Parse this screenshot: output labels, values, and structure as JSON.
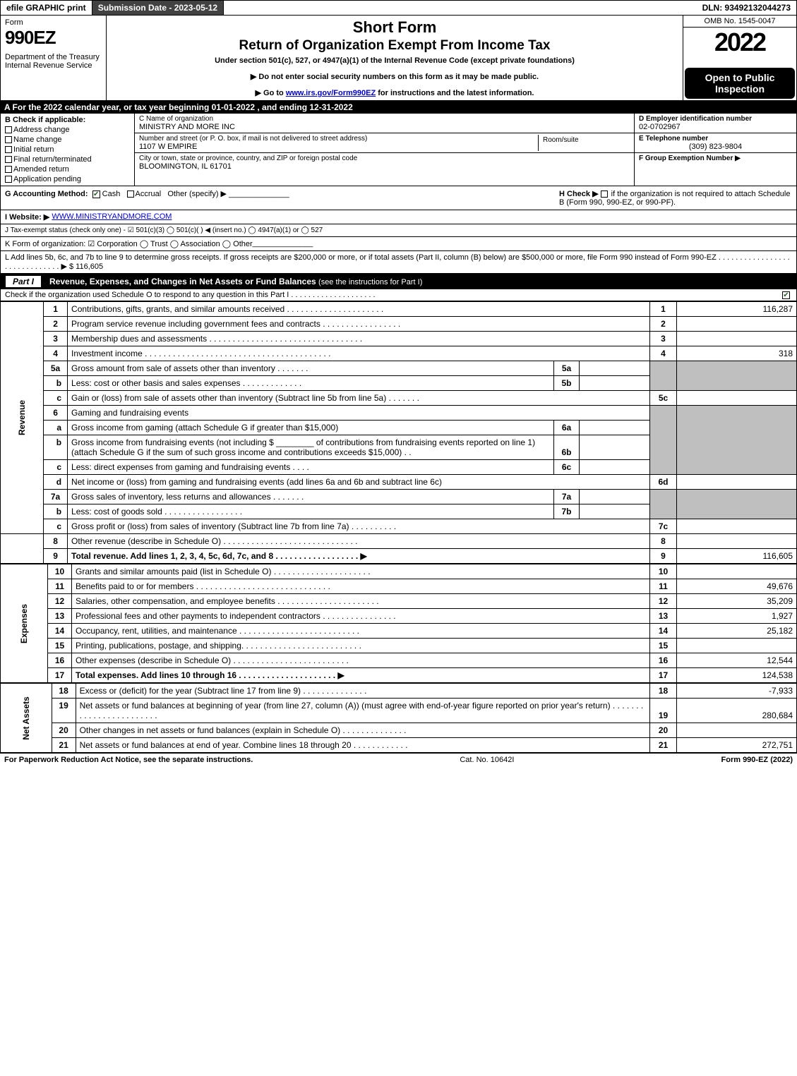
{
  "topbar": {
    "efile": "efile GRAPHIC print",
    "submission": "Submission Date - 2023-05-12",
    "dln": "DLN: 93492132044273"
  },
  "header": {
    "form_word": "Form",
    "form_num": "990EZ",
    "dept": "Department of the Treasury\nInternal Revenue Service",
    "title1": "Short Form",
    "title2": "Return of Organization Exempt From Income Tax",
    "sub": "Under section 501(c), 527, or 4947(a)(1) of the Internal Revenue Code (except private foundations)",
    "note1": "▶ Do not enter social security numbers on this form as it may be made public.",
    "note2_pre": "▶ Go to ",
    "note2_link": "www.irs.gov/Form990EZ",
    "note2_post": " for instructions and the latest information.",
    "omb": "OMB No. 1545-0047",
    "year": "2022",
    "inspect": "Open to Public Inspection"
  },
  "rowA": "A  For the 2022 calendar year, or tax year beginning 01-01-2022 , and ending 12-31-2022",
  "colB": {
    "label": "B  Check if applicable:",
    "items": [
      "Address change",
      "Name change",
      "Initial return",
      "Final return/terminated",
      "Amended return",
      "Application pending"
    ]
  },
  "colC": {
    "name_lab": "C Name of organization",
    "name_val": "MINISTRY AND MORE INC",
    "street_lab": "Number and street (or P. O. box, if mail is not delivered to street address)",
    "street_val": "1107 W EMPIRE",
    "room_lab": "Room/suite",
    "city_lab": "City or town, state or province, country, and ZIP or foreign postal code",
    "city_val": "BLOOMINGTON, IL  61701"
  },
  "colDE": {
    "d_lab": "D Employer identification number",
    "d_val": "02-0702967",
    "e_lab": "E Telephone number",
    "e_val": "(309) 823-9804",
    "f_lab": "F Group Exemption Number   ▶"
  },
  "rowG": {
    "label": "G Accounting Method:",
    "cash": "Cash",
    "accrual": "Accrual",
    "other": "Other (specify) ▶",
    "h_label": "H  Check ▶",
    "h_text": "if the organization is not required to attach Schedule B (Form 990, 990-EZ, or 990-PF)."
  },
  "rowI": {
    "label": "I Website: ▶",
    "value": "WWW.MINISTRYANDMORE.COM"
  },
  "rowJ": "J Tax-exempt status (check only one) -  ☑ 501(c)(3)  ◯ 501(c)(  ) ◀ (insert no.)  ◯ 4947(a)(1) or  ◯ 527",
  "rowK": "K Form of organization:   ☑ Corporation   ◯ Trust   ◯ Association   ◯ Other",
  "rowL": {
    "text": "L Add lines 5b, 6c, and 7b to line 9 to determine gross receipts. If gross receipts are $200,000 or more, or if total assets (Part II, column (B) below) are $500,000 or more, file Form 990 instead of Form 990-EZ . . . . . . . . . . . . . . . . . . . . . . . . . . . . . . ▶ $",
    "value": "116,605"
  },
  "part1": {
    "num": "Part I",
    "title": "Revenue, Expenses, and Changes in Net Assets or Fund Balances",
    "title_note": "(see the instructions for Part I)",
    "sub": "Check if the organization used Schedule O to respond to any question in this Part I . . . . . . . . . . . . . . . . . . . ."
  },
  "side_labels": {
    "revenue": "Revenue",
    "expenses": "Expenses",
    "netassets": "Net Assets"
  },
  "lines": {
    "l1": {
      "n": "1",
      "d": "Contributions, gifts, grants, and similar amounts received . . . . . . . . . . . . . . . . . . . . .",
      "num": "1",
      "amt": "116,287"
    },
    "l2": {
      "n": "2",
      "d": "Program service revenue including government fees and contracts . . . . . . . . . . . . . . . . .",
      "num": "2",
      "amt": ""
    },
    "l3": {
      "n": "3",
      "d": "Membership dues and assessments . . . . . . . . . . . . . . . . . . . . . . . . . . . . . . . . .",
      "num": "3",
      "amt": ""
    },
    "l4": {
      "n": "4",
      "d": "Investment income . . . . . . . . . . . . . . . . . . . . . . . . . . . . . . . . . . . . . . . .",
      "num": "4",
      "amt": "318"
    },
    "l5a": {
      "n": "5a",
      "d": "Gross amount from sale of assets other than inventory . . . . . . .",
      "mini": "5a"
    },
    "l5b": {
      "n": "b",
      "d": "Less: cost or other basis and sales expenses . . . . . . . . . . . . .",
      "mini": "5b"
    },
    "l5c": {
      "n": "c",
      "d": "Gain or (loss) from sale of assets other than inventory (Subtract line 5b from line 5a) . . . . . . .",
      "num": "5c",
      "amt": ""
    },
    "l6": {
      "n": "6",
      "d": "Gaming and fundraising events"
    },
    "l6a": {
      "n": "a",
      "d": "Gross income from gaming (attach Schedule G if greater than $15,000)",
      "mini": "6a"
    },
    "l6b": {
      "n": "b",
      "d1": "Gross income from fundraising events (not including $",
      "d2": "of contributions from fundraising events reported on line 1) (attach Schedule G if the sum of such gross income and contributions exceeds $15,000)   .   .",
      "mini": "6b"
    },
    "l6c": {
      "n": "c",
      "d": "Less: direct expenses from gaming and fundraising events   . . . .",
      "mini": "6c"
    },
    "l6d": {
      "n": "d",
      "d": "Net income or (loss) from gaming and fundraising events (add lines 6a and 6b and subtract line 6c)",
      "num": "6d",
      "amt": ""
    },
    "l7a": {
      "n": "7a",
      "d": "Gross sales of inventory, less returns and allowances . . . . . . .",
      "mini": "7a"
    },
    "l7b": {
      "n": "b",
      "d": "Less: cost of goods sold      . . . . . . . . . . . . . . . . .",
      "mini": "7b"
    },
    "l7c": {
      "n": "c",
      "d": "Gross profit or (loss) from sales of inventory (Subtract line 7b from line 7a) . . . . . . . . . .",
      "num": "7c",
      "amt": ""
    },
    "l8": {
      "n": "8",
      "d": "Other revenue (describe in Schedule O) . . . . . . . . . . . . . . . . . . . . . . . . . . . . .",
      "num": "8",
      "amt": ""
    },
    "l9": {
      "n": "9",
      "d": "Total revenue. Add lines 1, 2, 3, 4, 5c, 6d, 7c, and 8  . . . . . . . . . . . . . . . . . .  ▶",
      "num": "9",
      "amt": "116,605",
      "bold": true
    },
    "l10": {
      "n": "10",
      "d": "Grants and similar amounts paid (list in Schedule O) . . . . . . . . . . . . . . . . . . . . .",
      "num": "10",
      "amt": ""
    },
    "l11": {
      "n": "11",
      "d": "Benefits paid to or for members     . . . . . . . . . . . . . . . . . . . . . . . . . . . . .",
      "num": "11",
      "amt": "49,676"
    },
    "l12": {
      "n": "12",
      "d": "Salaries, other compensation, and employee benefits . . . . . . . . . . . . . . . . . . . . . .",
      "num": "12",
      "amt": "35,209"
    },
    "l13": {
      "n": "13",
      "d": "Professional fees and other payments to independent contractors . . . . . . . . . . . . . . . .",
      "num": "13",
      "amt": "1,927"
    },
    "l14": {
      "n": "14",
      "d": "Occupancy, rent, utilities, and maintenance . . . . . . . . . . . . . . . . . . . . . . . . . .",
      "num": "14",
      "amt": "25,182"
    },
    "l15": {
      "n": "15",
      "d": "Printing, publications, postage, and shipping. . . . . . . . . . . . . . . . . . . . . . . . . .",
      "num": "15",
      "amt": ""
    },
    "l16": {
      "n": "16",
      "d": "Other expenses (describe in Schedule O)     . . . . . . . . . . . . . . . . . . . . . . . . .",
      "num": "16",
      "amt": "12,544"
    },
    "l17": {
      "n": "17",
      "d": "Total expenses. Add lines 10 through 16     . . . . . . . . . . . . . . . . . . . . .  ▶",
      "num": "17",
      "amt": "124,538",
      "bold": true
    },
    "l18": {
      "n": "18",
      "d": "Excess or (deficit) for the year (Subtract line 17 from line 9)       . . . . . . . . . . . . . .",
      "num": "18",
      "amt": "-7,933"
    },
    "l19": {
      "n": "19",
      "d": "Net assets or fund balances at beginning of year (from line 27, column (A)) (must agree with end-of-year figure reported on prior year's return) . . . . . . . . . . . . . . . . . . . . . . . .",
      "num": "19",
      "amt": "280,684"
    },
    "l20": {
      "n": "20",
      "d": "Other changes in net assets or fund balances (explain in Schedule O) . . . . . . . . . . . . . .",
      "num": "20",
      "amt": ""
    },
    "l21": {
      "n": "21",
      "d": "Net assets or fund balances at end of year. Combine lines 18 through 20 . . . . . . . . . . . .",
      "num": "21",
      "amt": "272,751"
    }
  },
  "footer": {
    "left": "For Paperwork Reduction Act Notice, see the separate instructions.",
    "mid": "Cat. No. 10642I",
    "right": "Form 990-EZ (2022)"
  }
}
